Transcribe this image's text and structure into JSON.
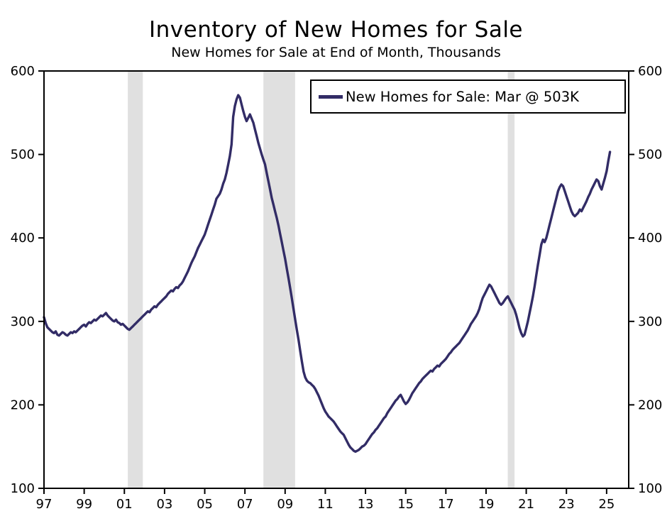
{
  "title": "Inventory of New Homes for Sale",
  "subtitle": "New Homes for Sale at End of Month, Thousands",
  "legend": {
    "label": "New Homes for Sale: Mar @ 503K"
  },
  "colors": {
    "line": "#322c66",
    "recession": "#e0e0e0",
    "axis": "#000000",
    "background": "#ffffff"
  },
  "chart_data": {
    "type": "line",
    "title": "Inventory of New Homes for Sale",
    "subtitle": "New Homes for Sale at End of Month, Thousands",
    "unit": "Thousands",
    "ylim": [
      100,
      600
    ],
    "y_ticks": [
      100,
      200,
      300,
      400,
      500,
      600
    ],
    "y_axis_sides": [
      "left",
      "right"
    ],
    "x_domain": [
      1997,
      2026.1
    ],
    "x_ticks": [
      {
        "year": 1997,
        "label": "97"
      },
      {
        "year": 1999,
        "label": "99"
      },
      {
        "year": 2001,
        "label": "01"
      },
      {
        "year": 2003,
        "label": "03"
      },
      {
        "year": 2005,
        "label": "05"
      },
      {
        "year": 2007,
        "label": "07"
      },
      {
        "year": 2009,
        "label": "09"
      },
      {
        "year": 2011,
        "label": "11"
      },
      {
        "year": 2013,
        "label": "13"
      },
      {
        "year": 2015,
        "label": "15"
      },
      {
        "year": 2017,
        "label": "17"
      },
      {
        "year": 2019,
        "label": "19"
      },
      {
        "year": 2021,
        "label": "21"
      },
      {
        "year": 2023,
        "label": "23"
      },
      {
        "year": 2025,
        "label": "25"
      }
    ],
    "recessions": [
      {
        "start": 2001.17,
        "end": 2001.92
      },
      {
        "start": 2007.92,
        "end": 2009.5
      },
      {
        "start": 2020.08,
        "end": 2020.42
      }
    ],
    "grid": false,
    "legend_position": "top-right-inside",
    "last_point": {
      "period": "Mar 2025",
      "value": 503,
      "label": "Mar @ 503K"
    },
    "series": [
      {
        "name": "New Homes for Sale",
        "start_year": 1997,
        "frequency": "monthly",
        "values": [
          305,
          298,
          293,
          291,
          289,
          287,
          286,
          288,
          284,
          283,
          285,
          287,
          286,
          284,
          283,
          285,
          287,
          286,
          288,
          287,
          289,
          291,
          293,
          295,
          296,
          294,
          297,
          299,
          298,
          300,
          302,
          301,
          303,
          305,
          307,
          306,
          308,
          310,
          307,
          305,
          303,
          301,
          300,
          302,
          299,
          298,
          296,
          297,
          295,
          293,
          291,
          290,
          292,
          294,
          296,
          298,
          300,
          302,
          304,
          306,
          308,
          310,
          312,
          311,
          314,
          316,
          318,
          317,
          320,
          322,
          324,
          326,
          328,
          330,
          333,
          335,
          337,
          336,
          339,
          341,
          340,
          343,
          345,
          348,
          352,
          356,
          360,
          365,
          370,
          374,
          378,
          383,
          388,
          392,
          396,
          400,
          404,
          410,
          416,
          422,
          428,
          434,
          440,
          447,
          450,
          453,
          458,
          465,
          470,
          478,
          488,
          498,
          512,
          545,
          558,
          566,
          571,
          568,
          560,
          552,
          545,
          540,
          544,
          548,
          543,
          538,
          530,
          522,
          514,
          507,
          500,
          494,
          488,
          478,
          468,
          458,
          448,
          440,
          432,
          424,
          415,
          405,
          395,
          385,
          375,
          363,
          352,
          340,
          328,
          315,
          302,
          290,
          278,
          265,
          252,
          240,
          233,
          229,
          227,
          226,
          224,
          222,
          219,
          215,
          211,
          206,
          201,
          196,
          192,
          189,
          186,
          184,
          182,
          180,
          177,
          174,
          171,
          168,
          166,
          164,
          160,
          156,
          152,
          149,
          147,
          145,
          144,
          145,
          146,
          148,
          150,
          151,
          153,
          156,
          159,
          162,
          165,
          167,
          170,
          172,
          175,
          178,
          181,
          184,
          186,
          190,
          193,
          196,
          199,
          202,
          205,
          207,
          210,
          212,
          208,
          204,
          201,
          203,
          206,
          210,
          214,
          217,
          220,
          223,
          226,
          228,
          231,
          233,
          235,
          237,
          239,
          241,
          240,
          243,
          245,
          247,
          246,
          249,
          251,
          253,
          255,
          258,
          261,
          263,
          266,
          268,
          270,
          272,
          274,
          277,
          280,
          283,
          286,
          289,
          293,
          297,
          300,
          303,
          306,
          310,
          315,
          322,
          328,
          332,
          336,
          340,
          344,
          342,
          338,
          334,
          330,
          326,
          322,
          320,
          322,
          325,
          328,
          330,
          326,
          322,
          318,
          314,
          308,
          300,
          292,
          286,
          282,
          284,
          292,
          300,
          310,
          320,
          330,
          342,
          355,
          368,
          380,
          392,
          398,
          395,
          400,
          408,
          416,
          424,
          432,
          440,
          448,
          456,
          461,
          464,
          462,
          456,
          450,
          444,
          438,
          432,
          428,
          426,
          428,
          430,
          434,
          432,
          436,
          440,
          444,
          449,
          453,
          458,
          462,
          466,
          470,
          468,
          462,
          458,
          465,
          472,
          480,
          492,
          503
        ]
      }
    ]
  }
}
